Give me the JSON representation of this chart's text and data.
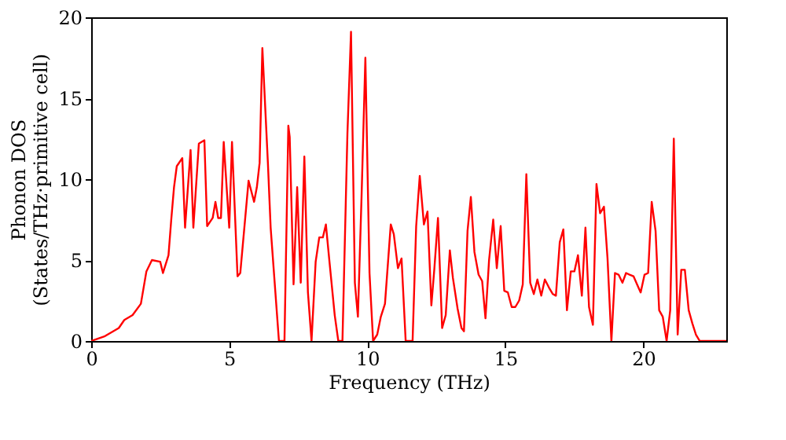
{
  "chart_data": {
    "type": "line",
    "xlabel": "Frequency (THz)",
    "ylabel": "Phonon DOS\n(States/THz·primitive cell)",
    "x": [
      0,
      0.5,
      1.0,
      1.2,
      1.5,
      1.8,
      2.0,
      2.2,
      2.5,
      2.6,
      2.8,
      2.9,
      3.0,
      3.1,
      3.3,
      3.4,
      3.6,
      3.7,
      3.9,
      4.1,
      4.2,
      4.4,
      4.5,
      4.6,
      4.7,
      4.8,
      5.0,
      5.1,
      5.3,
      5.4,
      5.6,
      5.7,
      5.9,
      6.0,
      6.1,
      6.2,
      6.4,
      6.5,
      6.8,
      7.0,
      7.14,
      7.19,
      7.33,
      7.46,
      7.59,
      7.72,
      7.85,
      7.98,
      8.13,
      8.26,
      8.39,
      8.5,
      8.63,
      8.82,
      8.95,
      9.1,
      9.28,
      9.41,
      9.55,
      9.66,
      9.79,
      9.93,
      10.08,
      10.21,
      10.36,
      10.49,
      10.64,
      10.85,
      10.96,
      11.11,
      11.24,
      11.39,
      11.64,
      11.77,
      11.9,
      12.05,
      12.18,
      12.32,
      12.43,
      12.56,
      12.71,
      12.84,
      12.99,
      13.1,
      13.27,
      13.41,
      13.5,
      13.63,
      13.75,
      13.88,
      14.03,
      14.16,
      14.28,
      14.41,
      14.56,
      14.69,
      14.83,
      14.96,
      15.09,
      15.23,
      15.36,
      15.5,
      15.63,
      15.76,
      15.9,
      16.03,
      16.16,
      16.3,
      16.43,
      16.58,
      16.72,
      16.83,
      16.97,
      17.1,
      17.23,
      17.37,
      17.5,
      17.63,
      17.77,
      17.9,
      18.03,
      18.17,
      18.3,
      18.43,
      18.57,
      18.7,
      18.84,
      18.97,
      19.1,
      19.24,
      19.37,
      19.5,
      19.64,
      19.77,
      19.9,
      20.04,
      20.17,
      20.3,
      20.44,
      20.57,
      20.7,
      20.84,
      20.97,
      21.1,
      21.24,
      21.37,
      21.5,
      21.64,
      21.77,
      21.9,
      22.04,
      23
    ],
    "series": [
      {
        "color": "#ff0000",
        "values": [
          0,
          0.3,
          0.8,
          1.3,
          1.6,
          2.3,
          4.3,
          5.0,
          4.9,
          4.2,
          5.3,
          7.5,
          9.5,
          10.8,
          11.3,
          7.0,
          11.8,
          7.0,
          12.2,
          12.4,
          7.1,
          7.6,
          8.6,
          7.6,
          7.6,
          12.3,
          7.0,
          12.3,
          4.0,
          4.2,
          8.0,
          9.9,
          8.6,
          9.5,
          11.0,
          18.1,
          11.0,
          7.0,
          0,
          0,
          13.3,
          12.6,
          3.5,
          9.5,
          3.6,
          11.4,
          3.0,
          0,
          4.9,
          6.4,
          6.4,
          7.2,
          4.9,
          1.6,
          0,
          0,
          12.8,
          19.1,
          3.6,
          1.5,
          8.8,
          17.5,
          4.2,
          0,
          0.4,
          1.5,
          2.3,
          7.2,
          6.6,
          4.5,
          5.1,
          0,
          0,
          7.1,
          10.2,
          7.2,
          8.0,
          2.2,
          4.5,
          7.6,
          0.8,
          1.6,
          5.6,
          3.9,
          2.0,
          0.8,
          0.6,
          6.8,
          8.9,
          5.5,
          4.1,
          3.7,
          1.4,
          5.0,
          7.5,
          4.5,
          7.1,
          3.1,
          3.0,
          2.1,
          2.1,
          2.5,
          3.5,
          10.3,
          3.6,
          2.9,
          3.8,
          2.8,
          3.8,
          3.3,
          2.9,
          2.8,
          6.1,
          6.9,
          1.9,
          4.3,
          4.3,
          5.3,
          2.8,
          7.0,
          2.1,
          1.0,
          9.7,
          7.9,
          8.3,
          5.1,
          0,
          4.2,
          4.1,
          3.6,
          4.2,
          4.1,
          4.0,
          3.5,
          3.0,
          4.1,
          4.2,
          8.6,
          6.8,
          1.9,
          1.5,
          0,
          1.9,
          12.5,
          0.4,
          4.4,
          4.4,
          1.9,
          1.1,
          0.4,
          0,
          0
        ]
      }
    ],
    "xlim": [
      0,
      23
    ],
    "ylim": [
      0,
      20
    ],
    "xticks": [
      0,
      5,
      10,
      15,
      20
    ],
    "yticks": [
      0,
      5,
      10,
      15,
      20
    ],
    "grid": false,
    "line_style": "solid"
  }
}
